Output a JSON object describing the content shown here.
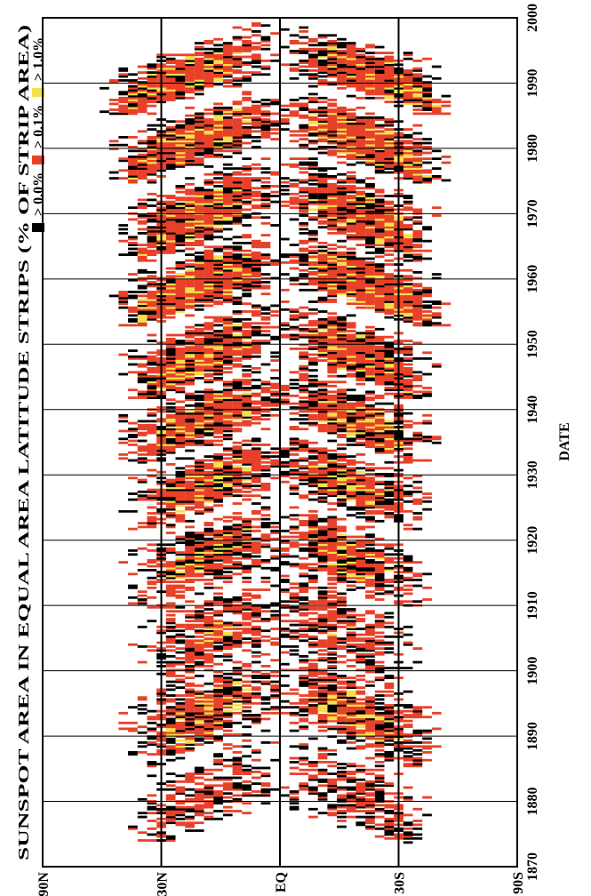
{
  "chart_data": {
    "type": "heatmap",
    "title": "SUNSPOT AREA IN EQUAL AREA LATITUDE STRIPS (% OF STRIP AREA)",
    "xlabel": "DATE",
    "ylabel": "",
    "x_ticks": [
      "1870",
      "1880",
      "1890",
      "1900",
      "1910",
      "1920",
      "1930",
      "1940",
      "1950",
      "1960",
      "1970",
      "1980",
      "1990",
      "2000"
    ],
    "y_ticks": [
      "90N",
      "30N",
      "EQ",
      "30S",
      "90S"
    ],
    "xlim": [
      1870,
      2000
    ],
    "ylim": [
      -90,
      90
    ],
    "grid": true,
    "orientation": "rotated-90",
    "legend": [
      {
        "label": "> 0.0%",
        "color": "#000000"
      },
      {
        "label": "> 0.1%",
        "color": "#e8412a"
      },
      {
        "label": "> 1.0%",
        "color": "#f4e04a"
      }
    ],
    "cycles": [
      {
        "start": 1874.5,
        "peak": 1879.0,
        "end": 1889.5,
        "n_lat_start": 32,
        "s_lat_start": 30,
        "intensity": 0.55
      },
      {
        "start": 1886.0,
        "peak": 1893.0,
        "end": 1901.5,
        "n_lat_start": 33,
        "s_lat_start": 34,
        "intensity": 0.8
      },
      {
        "start": 1898.0,
        "peak": 1906.0,
        "end": 1913.5,
        "n_lat_start": 28,
        "s_lat_start": 27,
        "intensity": 0.6
      },
      {
        "start": 1910.5,
        "peak": 1917.5,
        "end": 1924.0,
        "n_lat_start": 33,
        "s_lat_start": 32,
        "intensity": 0.8
      },
      {
        "start": 1922.0,
        "peak": 1928.5,
        "end": 1934.5,
        "n_lat_start": 34,
        "s_lat_start": 33,
        "intensity": 0.85
      },
      {
        "start": 1932.5,
        "peak": 1938.0,
        "end": 1945.0,
        "n_lat_start": 35,
        "s_lat_start": 34,
        "intensity": 0.95
      },
      {
        "start": 1942.5,
        "peak": 1947.5,
        "end": 1955.5,
        "n_lat_start": 33,
        "s_lat_start": 34,
        "intensity": 1.0
      },
      {
        "start": 1953.5,
        "peak": 1958.0,
        "end": 1966.0,
        "n_lat_start": 36,
        "s_lat_start": 38,
        "intensity": 1.2
      },
      {
        "start": 1963.5,
        "peak": 1969.0,
        "end": 1977.5,
        "n_lat_start": 35,
        "s_lat_start": 34,
        "intensity": 1.0
      },
      {
        "start": 1975.5,
        "peak": 1980.0,
        "end": 1988.0,
        "n_lat_start": 38,
        "s_lat_start": 37,
        "intensity": 1.15
      },
      {
        "start": 1986.0,
        "peak": 1990.0,
        "end": 1998.0,
        "n_lat_start": 40,
        "s_lat_start": 40,
        "intensity": 1.1
      }
    ]
  }
}
